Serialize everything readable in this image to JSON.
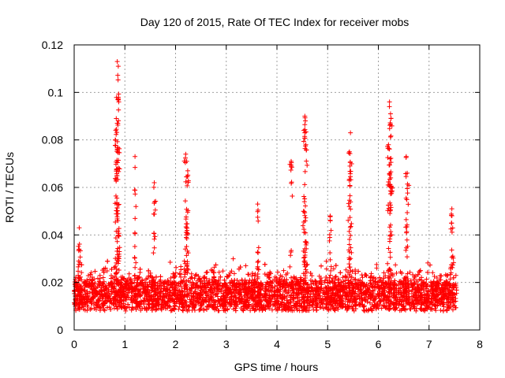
{
  "chart_data": {
    "type": "scatter",
    "title": "Day 120 of 2015, Rate Of TEC Index for receiver mobs",
    "xlabel": "GPS time / hours",
    "ylabel": "ROTI / TECUs",
    "xlim": [
      0,
      8
    ],
    "ylim": [
      0,
      0.12
    ],
    "x_ticks": [
      "0",
      "1",
      "2",
      "3",
      "4",
      "5",
      "6",
      "7",
      "8"
    ],
    "y_ticks": [
      "0",
      "0.02",
      "0.04",
      "0.06",
      "0.08",
      "0.1",
      "0.12"
    ],
    "grid": true,
    "marker": "+",
    "color": "#ff0000",
    "series": [
      {
        "name": "ROTI",
        "x_range": [
          0,
          7.55
        ],
        "baseline_band": [
          0.008,
          0.02
        ],
        "notable_peaks": [
          {
            "x": 0.85,
            "y": 0.113
          },
          {
            "x": 0.87,
            "y": 0.111
          },
          {
            "x": 0.86,
            "y": 0.097
          },
          {
            "x": 0.88,
            "y": 0.096
          },
          {
            "x": 0.83,
            "y": 0.089
          },
          {
            "x": 0.85,
            "y": 0.087
          },
          {
            "x": 0.82,
            "y": 0.084
          },
          {
            "x": 1.2,
            "y": 0.073
          },
          {
            "x": 1.58,
            "y": 0.062
          },
          {
            "x": 2.2,
            "y": 0.074
          },
          {
            "x": 2.22,
            "y": 0.071
          },
          {
            "x": 2.24,
            "y": 0.067
          },
          {
            "x": 4.55,
            "y": 0.09
          },
          {
            "x": 4.56,
            "y": 0.088
          },
          {
            "x": 4.53,
            "y": 0.084
          },
          {
            "x": 4.57,
            "y": 0.078
          },
          {
            "x": 4.28,
            "y": 0.071
          },
          {
            "x": 5.45,
            "y": 0.083
          },
          {
            "x": 5.43,
            "y": 0.075
          },
          {
            "x": 5.44,
            "y": 0.069
          },
          {
            "x": 6.22,
            "y": 0.096
          },
          {
            "x": 6.24,
            "y": 0.091
          },
          {
            "x": 6.25,
            "y": 0.089
          },
          {
            "x": 6.2,
            "y": 0.078
          },
          {
            "x": 6.23,
            "y": 0.072
          },
          {
            "x": 6.55,
            "y": 0.073
          },
          {
            "x": 6.57,
            "y": 0.066
          },
          {
            "x": 7.45,
            "y": 0.051
          },
          {
            "x": 3.62,
            "y": 0.053
          },
          {
            "x": 0.1,
            "y": 0.043
          },
          {
            "x": 5.05,
            "y": 0.048
          }
        ]
      }
    ]
  }
}
